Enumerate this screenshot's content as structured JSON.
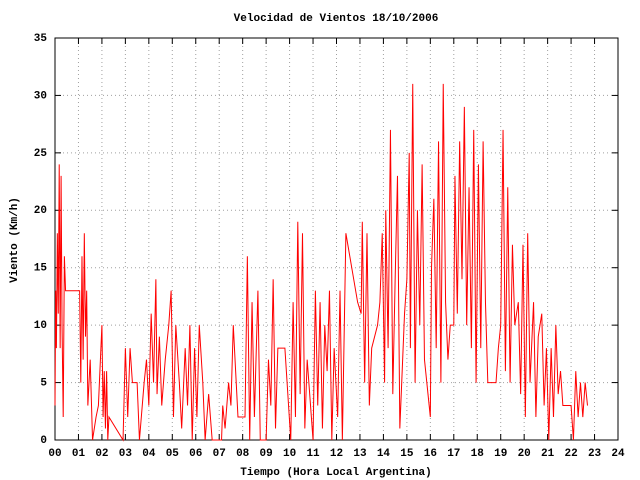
{
  "chart_data": {
    "type": "line",
    "title": "Velocidad de Vientos 18/10/2006",
    "xlabel": "Tiempo (Hora Local Argentina)",
    "ylabel": "Viento (Km/h)",
    "xlim": [
      0,
      24
    ],
    "ylim": [
      0,
      35
    ],
    "grid": true,
    "xticks": [
      {
        "value": 0,
        "label": "00"
      },
      {
        "value": 1,
        "label": "01"
      },
      {
        "value": 2,
        "label": "02"
      },
      {
        "value": 3,
        "label": "03"
      },
      {
        "value": 4,
        "label": "04"
      },
      {
        "value": 5,
        "label": "05"
      },
      {
        "value": 6,
        "label": "06"
      },
      {
        "value": 7,
        "label": "07"
      },
      {
        "value": 8,
        "label": "08"
      },
      {
        "value": 9,
        "label": "09"
      },
      10,
      11,
      12,
      13,
      14,
      15,
      16,
      17,
      18,
      19,
      20,
      21,
      22,
      23,
      24
    ],
    "yticks": [
      0,
      5,
      10,
      15,
      20,
      25,
      30,
      35
    ],
    "x": [
      0.0,
      0.03,
      0.06,
      0.1,
      0.14,
      0.18,
      0.22,
      0.26,
      0.3,
      0.35,
      0.4,
      0.45,
      0.9,
      1.05,
      1.1,
      1.15,
      1.2,
      1.25,
      1.3,
      1.35,
      1.4,
      1.5,
      1.6,
      1.75,
      1.85,
      2.0,
      2.05,
      2.1,
      2.15,
      2.2,
      2.25,
      2.3,
      2.9,
      3.0,
      3.1,
      3.2,
      3.3,
      3.5,
      3.6,
      3.8,
      3.9,
      4.0,
      4.1,
      4.2,
      4.3,
      4.35,
      4.45,
      4.55,
      4.7,
      4.85,
      4.95,
      5.05,
      5.15,
      5.3,
      5.4,
      5.55,
      5.65,
      5.75,
      5.85,
      5.95,
      6.05,
      6.15,
      6.3,
      6.4,
      6.55,
      6.7,
      7.1,
      7.15,
      7.25,
      7.4,
      7.5,
      7.6,
      7.7,
      7.8,
      8.1,
      8.2,
      8.3,
      8.4,
      8.5,
      8.65,
      8.75,
      9.0,
      9.1,
      9.2,
      9.3,
      9.4,
      9.5,
      9.8,
      10.05,
      10.15,
      10.25,
      10.35,
      10.45,
      10.55,
      10.65,
      10.75,
      11.0,
      11.1,
      11.2,
      11.3,
      11.4,
      11.5,
      11.6,
      11.7,
      11.8,
      11.9,
      12.05,
      12.15,
      12.25,
      12.4,
      12.9,
      13.05,
      13.1,
      13.2,
      13.3,
      13.4,
      13.5,
      13.75,
      13.85,
      13.95,
      14.05,
      14.1,
      14.2,
      14.3,
      14.4,
      14.5,
      14.6,
      14.7,
      14.9,
      15.0,
      15.1,
      15.15,
      15.25,
      15.35,
      15.45,
      15.55,
      15.65,
      15.75,
      15.9,
      16.0,
      16.05,
      16.15,
      16.25,
      16.35,
      16.45,
      16.55,
      16.65,
      16.75,
      16.85,
      17.0,
      17.05,
      17.15,
      17.25,
      17.35,
      17.45,
      17.55,
      17.65,
      17.75,
      17.85,
      17.95,
      18.05,
      18.15,
      18.25,
      18.35,
      18.45,
      18.8,
      18.9,
      19.0,
      19.1,
      19.2,
      19.3,
      19.4,
      19.5,
      19.6,
      19.75,
      19.85,
      19.95,
      20.05,
      20.15,
      20.25,
      20.4,
      20.5,
      20.6,
      20.75,
      20.85,
      20.95,
      21.05,
      21.15,
      21.25,
      21.35,
      21.45,
      21.55,
      21.65,
      22.0,
      22.1,
      22.2,
      22.3,
      22.4,
      22.5,
      22.6,
      22.7
    ],
    "series": [
      {
        "color": "#ff0000",
        "values": [
          3,
          13,
          8,
          18,
          11,
          24,
          8,
          23,
          10,
          2,
          16,
          13,
          13,
          13,
          5,
          16,
          7,
          18,
          9,
          13,
          3,
          7,
          0,
          2,
          3,
          10,
          2,
          6,
          1,
          6,
          0,
          2,
          0,
          8,
          2,
          8,
          5,
          5,
          0,
          5,
          7,
          3,
          11,
          5,
          14,
          4,
          9,
          3,
          7,
          10,
          13,
          2,
          10,
          5,
          1,
          8,
          3,
          10,
          0,
          8,
          2,
          10,
          5,
          0,
          4,
          0,
          0,
          3,
          1,
          5,
          3,
          10,
          6,
          2,
          2,
          16,
          0,
          12,
          2,
          13,
          0,
          0,
          7,
          3,
          14,
          1,
          8,
          8,
          0,
          12,
          2,
          19,
          4,
          18,
          1,
          7,
          0,
          13,
          3,
          12,
          1,
          10,
          6,
          13,
          0,
          8,
          2,
          13,
          0,
          18,
          12,
          11,
          19,
          5,
          18,
          3,
          8,
          10,
          12,
          18,
          5,
          20,
          8,
          27,
          4,
          14,
          23,
          1,
          11,
          14,
          25,
          8,
          31,
          5,
          20,
          10,
          24,
          7,
          4,
          2,
          15,
          21,
          8,
          26,
          5,
          31,
          12,
          7,
          10,
          10,
          23,
          11,
          26,
          14,
          29,
          10,
          22,
          8,
          27,
          5,
          24,
          8,
          26,
          12,
          5,
          5,
          8,
          10,
          27,
          6,
          22,
          5,
          17,
          10,
          12,
          4,
          17,
          2,
          18,
          5,
          12,
          2,
          9,
          11,
          3,
          8,
          0,
          8,
          2,
          10,
          4,
          6,
          3,
          3,
          0,
          6,
          2,
          5,
          2,
          5,
          3
        ]
      }
    ]
  }
}
